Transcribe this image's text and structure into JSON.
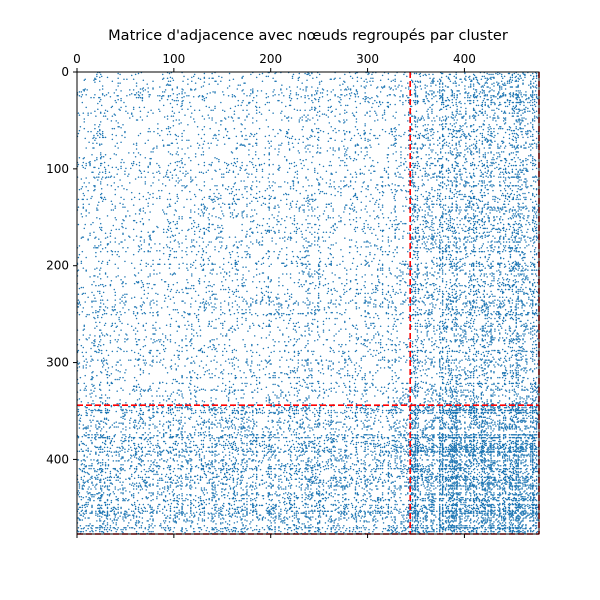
{
  "chart_data": {
    "type": "scatter",
    "title": "Matrice d'adjacence avec nœuds regroupés par cluster",
    "xlabel": "",
    "ylabel": "",
    "n_nodes": 477,
    "xlim": [
      0,
      477
    ],
    "ylim": [
      477,
      0
    ],
    "x_axis_position": "top",
    "x_ticks": [
      0,
      100,
      200,
      300,
      400
    ],
    "y_ticks": [
      0,
      100,
      200,
      300,
      400
    ],
    "grid": false,
    "legend": "none",
    "marker_color": "#1f77b4",
    "split_line_color": "#ff0000",
    "cluster_boundaries": [
      344
    ],
    "clusters": [
      {
        "start": 0,
        "end": 344
      },
      {
        "start": 344,
        "end": 477
      }
    ],
    "block_density": {
      "cluster_0_cluster_0": 0.05,
      "cluster_0_cluster_1": 0.13,
      "cluster_1_cluster_1": 0.3
    }
  }
}
